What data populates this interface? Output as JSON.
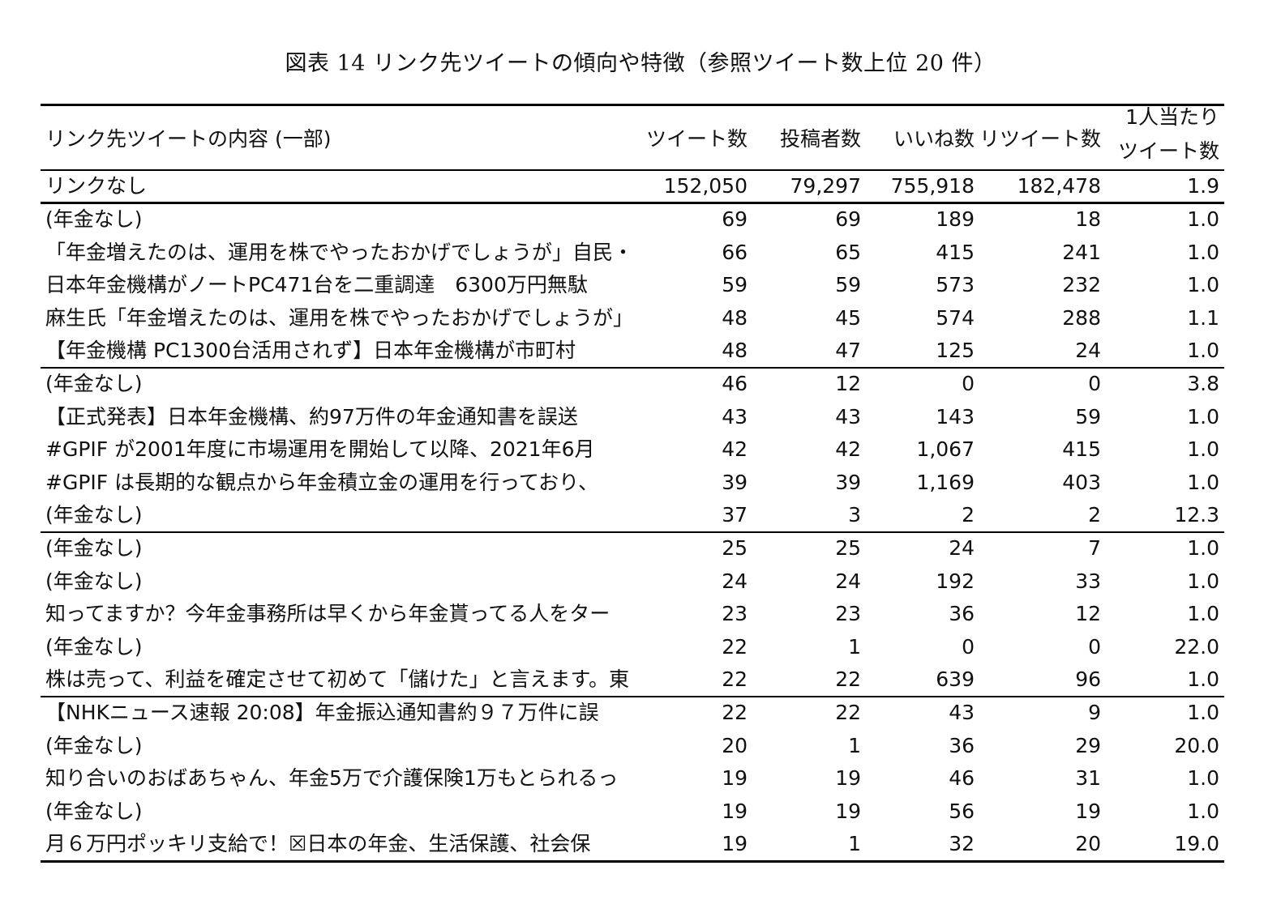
{
  "title": "図表 14  リンク先ツイートの傾向や特徴（参照ツイート数上位 20 件）",
  "headers": {
    "content": "リンク先ツイートの内容 (一部)",
    "tweets": "ツイート数",
    "posters": "投稿者数",
    "likes": "いいね数",
    "retweets": "リツイート数",
    "per_person_line1": "1人当たり",
    "per_person_line2": "ツイート数"
  },
  "summary_row": {
    "content": "リンクなし",
    "tweets": "152,050",
    "posters": "79,297",
    "likes": "755,918",
    "retweets": "182,478",
    "per_person": "1.9"
  },
  "rows": [
    {
      "content": "(年金なし)",
      "tweets": "69",
      "posters": "69",
      "likes": "189",
      "retweets": "18",
      "per_person": "1.0"
    },
    {
      "content": "「年金増えたのは、運用を株でやったおかげでしょうが」自民・麻",
      "tweets": "66",
      "posters": "65",
      "likes": "415",
      "retweets": "241",
      "per_person": "1.0"
    },
    {
      "content": "日本年金機構がノートPC471台を二重調達　6300万円無駄",
      "tweets": "59",
      "posters": "59",
      "likes": "573",
      "retweets": "232",
      "per_person": "1.0"
    },
    {
      "content": "麻生氏「年金増えたのは、運用を株でやったおかげでしょうが」",
      "tweets": "48",
      "posters": "45",
      "likes": "574",
      "retweets": "288",
      "per_person": "1.1"
    },
    {
      "content": "【年金機構 PC1300台活用されず】日本年金機構が市町村",
      "tweets": "48",
      "posters": "47",
      "likes": "125",
      "retweets": "24",
      "per_person": "1.0"
    },
    {
      "content": "(年金なし)",
      "tweets": "46",
      "posters": "12",
      "likes": "0",
      "retweets": "0",
      "per_person": "3.8"
    },
    {
      "content": "【正式発表】日本年金機構、約97万件の年金通知書を誤送",
      "tweets": "43",
      "posters": "43",
      "likes": "143",
      "retweets": "59",
      "per_person": "1.0"
    },
    {
      "content": "#GPIF が2001年度に市場運用を開始して以降、2021年6月",
      "tweets": "42",
      "posters": "42",
      "likes": "1,067",
      "retweets": "415",
      "per_person": "1.0"
    },
    {
      "content": "#GPIF は長期的な観点から年金積立金の運用を行っており、",
      "tweets": "39",
      "posters": "39",
      "likes": "1,169",
      "retweets": "403",
      "per_person": "1.0"
    },
    {
      "content": "(年金なし)",
      "tweets": "37",
      "posters": "3",
      "likes": "2",
      "retweets": "2",
      "per_person": "12.3"
    },
    {
      "content": "(年金なし)",
      "tweets": "25",
      "posters": "25",
      "likes": "24",
      "retweets": "7",
      "per_person": "1.0"
    },
    {
      "content": "(年金なし)",
      "tweets": "24",
      "posters": "24",
      "likes": "192",
      "retweets": "33",
      "per_person": "1.0"
    },
    {
      "content": "知ってますか？今年金事務所は早くから年金貰ってる人をター",
      "tweets": "23",
      "posters": "23",
      "likes": "36",
      "retweets": "12",
      "per_person": "1.0"
    },
    {
      "content": "(年金なし)",
      "tweets": "22",
      "posters": "1",
      "likes": "0",
      "retweets": "0",
      "per_person": "22.0"
    },
    {
      "content": "株は売って、利益を確定させて初めて「儲けた」と言えます。東",
      "tweets": "22",
      "posters": "22",
      "likes": "639",
      "retweets": "96",
      "per_person": "1.0"
    },
    {
      "content": "【NHKニュース速報 20:08】年金振込通知書約９７万件に誤",
      "tweets": "22",
      "posters": "22",
      "likes": "43",
      "retweets": "9",
      "per_person": "1.0"
    },
    {
      "content": "(年金なし)",
      "tweets": "20",
      "posters": "1",
      "likes": "36",
      "retweets": "29",
      "per_person": "20.0"
    },
    {
      "content": "知り合いのおばあちゃん、年金5万で介護保険1万もとられるっ",
      "tweets": "19",
      "posters": "19",
      "likes": "46",
      "retweets": "31",
      "per_person": "1.0"
    },
    {
      "content": "(年金なし)",
      "tweets": "19",
      "posters": "19",
      "likes": "56",
      "retweets": "19",
      "per_person": "1.0"
    },
    {
      "content": "月６万円ポッキリ支給で！☒日本の年金、生活保護、社会保",
      "tweets": "19",
      "posters": "1",
      "likes": "32",
      "retweets": "20",
      "per_person": "19.0"
    }
  ]
}
